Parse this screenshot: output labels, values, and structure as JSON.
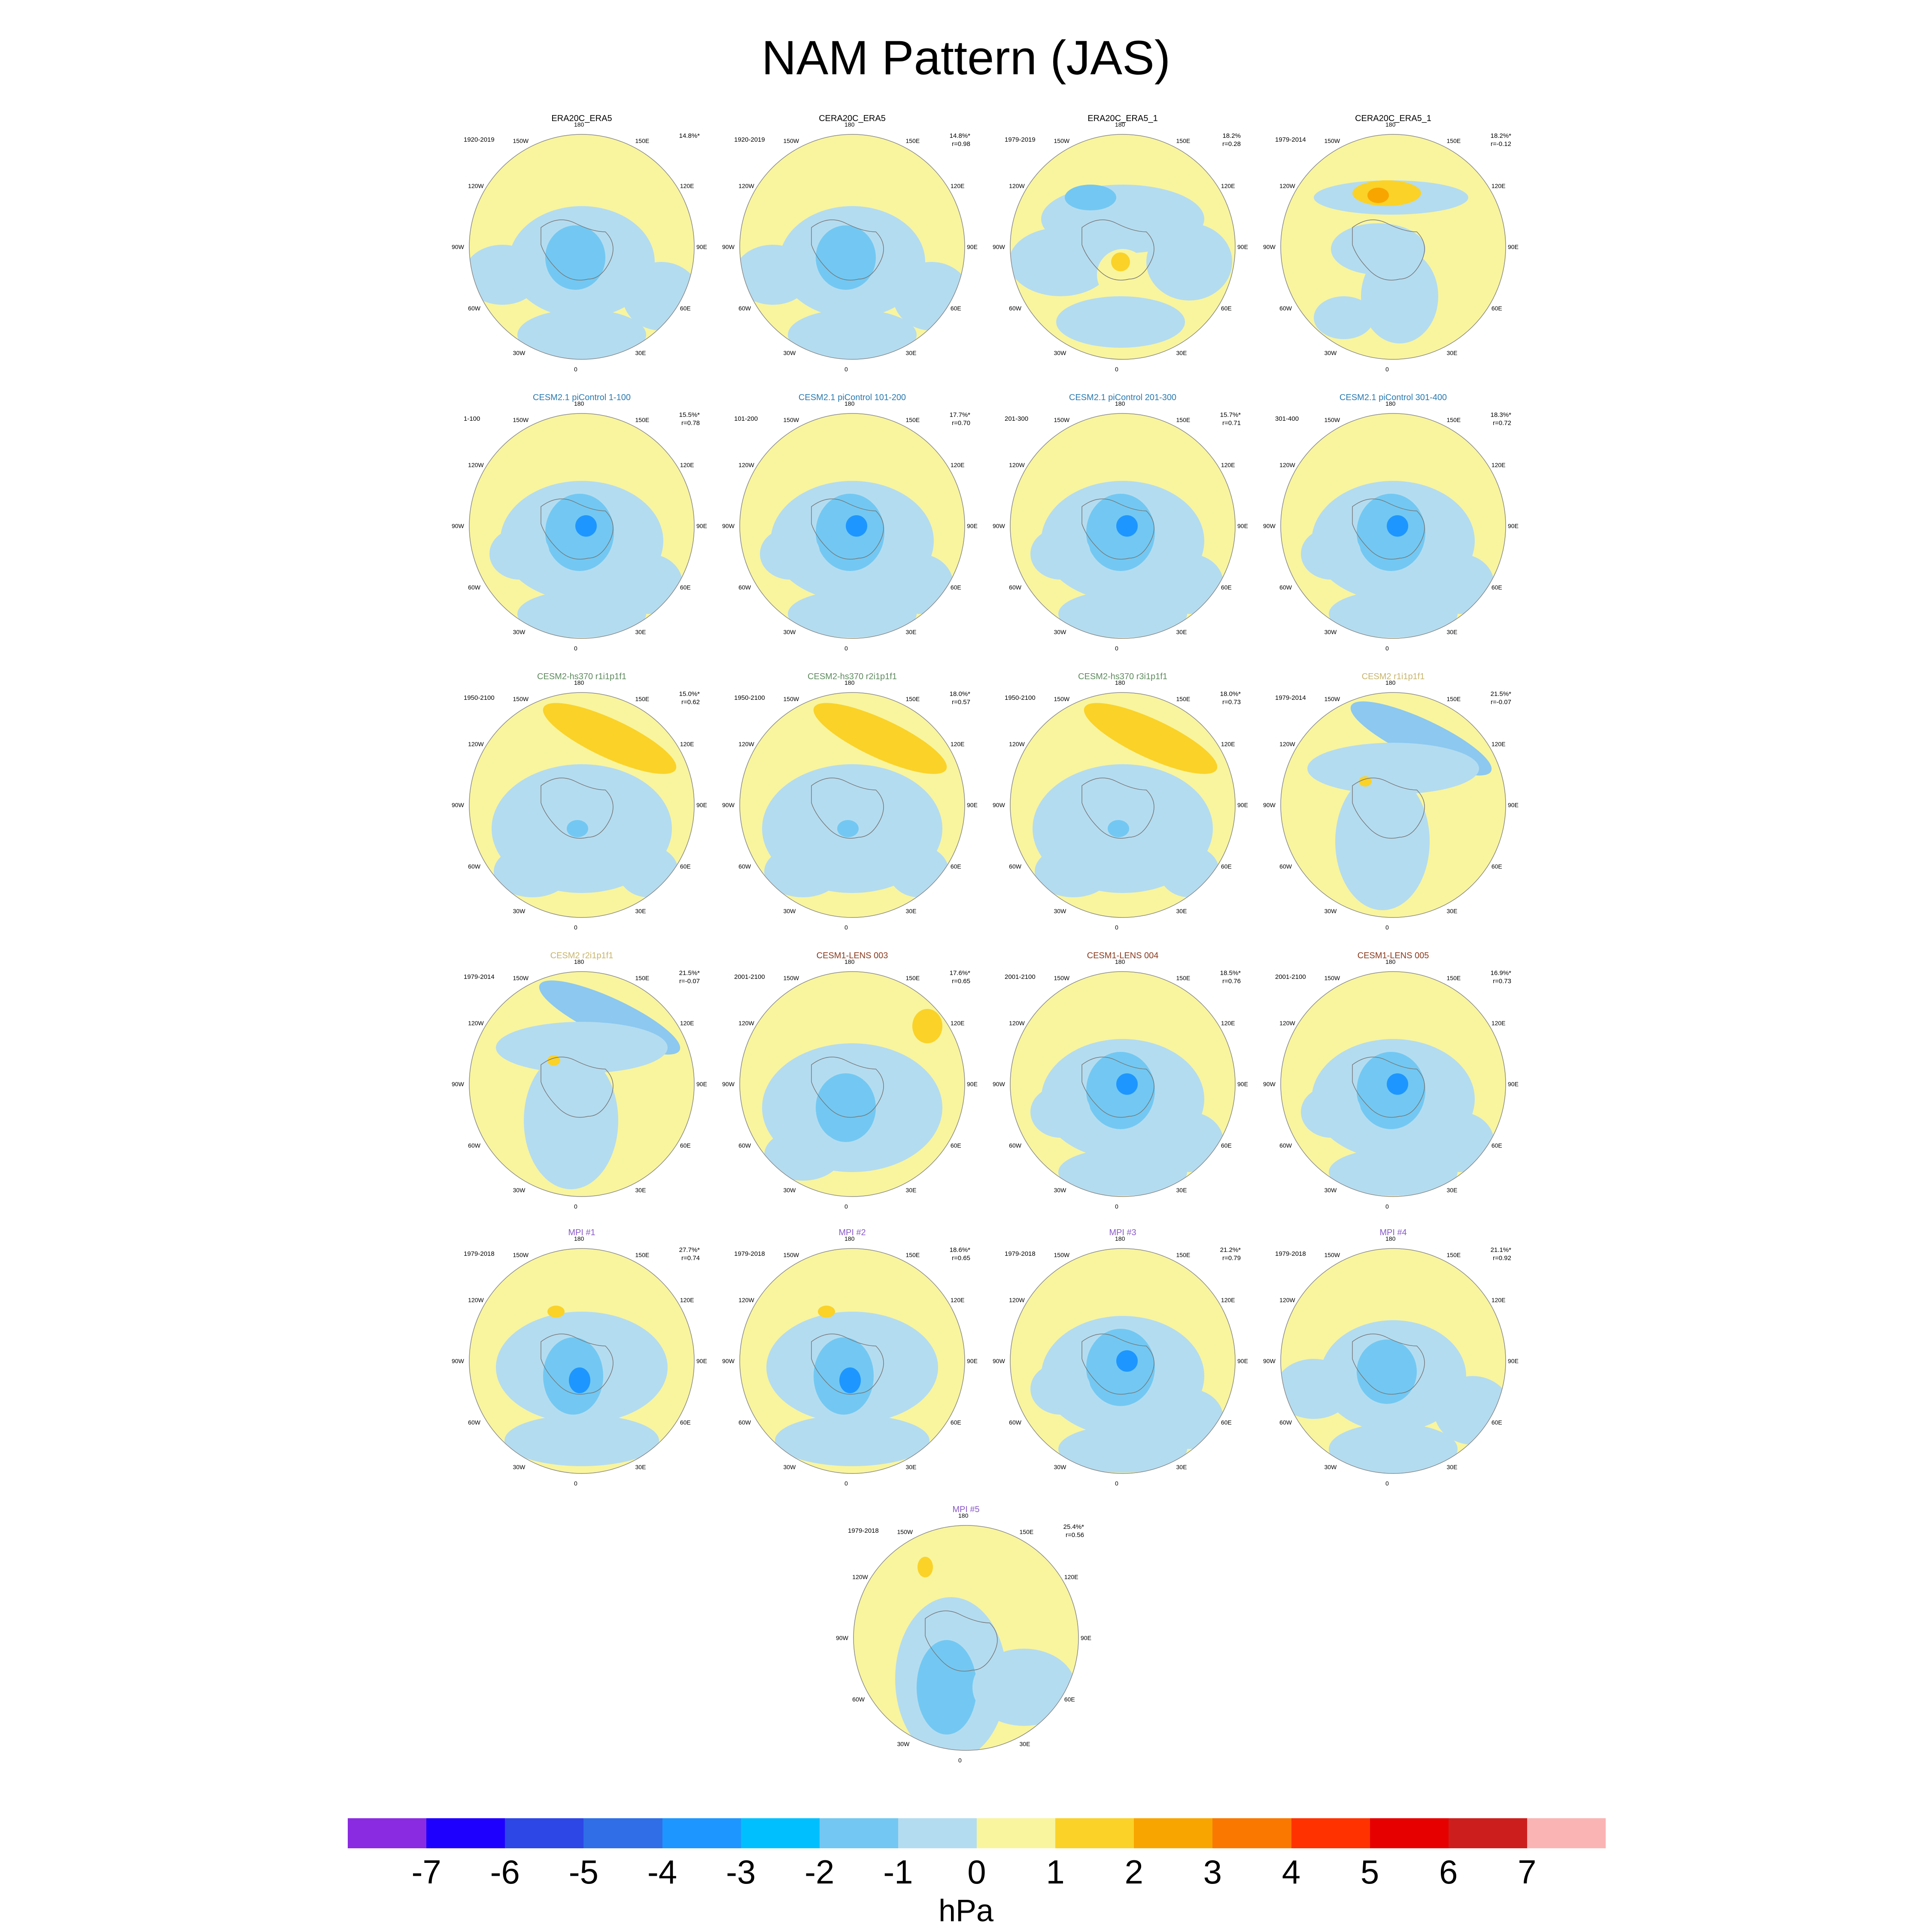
{
  "title": "NAM Pattern (JAS)",
  "lon_labels": [
    "180",
    "150E",
    "120E",
    "90E",
    "60E",
    "30E",
    "0",
    "30W",
    "60W",
    "90W",
    "120W",
    "150W"
  ],
  "panels": [
    {
      "title": "ERA20C_ERA5",
      "title_color": "#000000",
      "period": "1920-2019",
      "pct": "14.8%*",
      "r": "",
      "scheme": 0
    },
    {
      "title": "CERA20C_ERA5",
      "title_color": "#000000",
      "period": "1920-2019",
      "pct": "14.8%*",
      "r": "r=0.98",
      "scheme": 0
    },
    {
      "title": "ERA20C_ERA5_1",
      "title_color": "#000000",
      "period": "1979-2019",
      "pct": "18.2%",
      "r": "r=0.28",
      "scheme": 1
    },
    {
      "title": "CERA20C_ERA5_1",
      "title_color": "#000000",
      "period": "1979-2014",
      "pct": "18.2%*",
      "r": "r=-0.12",
      "scheme": 2
    },
    {
      "title": "CESM2.1 piControl 1-100",
      "title_color": "#2a7ab0",
      "period": "1-100",
      "pct": "15.5%*",
      "r": "r=0.78",
      "scheme": 3
    },
    {
      "title": "CESM2.1 piControl 101-200",
      "title_color": "#2a7ab0",
      "period": "101-200",
      "pct": "17.7%*",
      "r": "r=0.70",
      "scheme": 3
    },
    {
      "title": "CESM2.1 piControl 201-300",
      "title_color": "#2a7ab0",
      "period": "201-300",
      "pct": "15.7%*",
      "r": "r=0.71",
      "scheme": 3
    },
    {
      "title": "CESM2.1 piControl 301-400",
      "title_color": "#2a7ab0",
      "period": "301-400",
      "pct": "18.3%*",
      "r": "r=0.72",
      "scheme": 3
    },
    {
      "title": "CESM2-hs370 r1i1p1f1",
      "title_color": "#5e8a5e",
      "period": "1950-2100",
      "pct": "15.0%*",
      "r": "r=0.62",
      "scheme": 4
    },
    {
      "title": "CESM2-hs370 r2i1p1f1",
      "title_color": "#5e8a5e",
      "period": "1950-2100",
      "pct": "18.0%*",
      "r": "r=0.57",
      "scheme": 4
    },
    {
      "title": "CESM2-hs370 r3i1p1f1",
      "title_color": "#5e8a5e",
      "period": "1950-2100",
      "pct": "18.0%*",
      "r": "r=0.73",
      "scheme": 4
    },
    {
      "title": "CESM2 r1i1p1f1",
      "title_color": "#c8b46a",
      "period": "1979-2014",
      "pct": "21.5%*",
      "r": "r=-0.07",
      "scheme": 5
    },
    {
      "title": "CESM2 r2i1p1f1",
      "title_color": "#c8b46a",
      "period": "1979-2014",
      "pct": "21.5%*",
      "r": "r=-0.07",
      "scheme": 5
    },
    {
      "title": "CESM1-LENS 003",
      "title_color": "#8a3a1e",
      "period": "2001-2100",
      "pct": "17.6%*",
      "r": "r=0.65",
      "scheme": 6
    },
    {
      "title": "CESM1-LENS 004",
      "title_color": "#8a3a1e",
      "period": "2001-2100",
      "pct": "18.5%*",
      "r": "r=0.76",
      "scheme": 3
    },
    {
      "title": "CESM1-LENS 005",
      "title_color": "#8a3a1e",
      "period": "2001-2100",
      "pct": "16.9%*",
      "r": "r=0.73",
      "scheme": 3
    },
    {
      "title": "MPI #1",
      "title_color": "#8a5ac8",
      "period": "1979-2018",
      "pct": "27.7%*",
      "r": "r=0.74",
      "scheme": 7
    },
    {
      "title": "MPI #2",
      "title_color": "#8a5ac8",
      "period": "1979-2018",
      "pct": "18.6%*",
      "r": "r=0.65",
      "scheme": 7
    },
    {
      "title": "MPI #3",
      "title_color": "#8a5ac8",
      "period": "1979-2018",
      "pct": "21.2%*",
      "r": "r=0.79",
      "scheme": 3
    },
    {
      "title": "MPI #4",
      "title_color": "#8a5ac8",
      "period": "1979-2018",
      "pct": "21.1%*",
      "r": "r=0.92",
      "scheme": 0
    },
    {
      "title": "MPI #5",
      "title_color": "#8a5ac8",
      "period": "1979-2018",
      "pct": "25.4%*",
      "r": "r=0.56",
      "scheme": 8
    }
  ],
  "colorbar": {
    "colors": [
      "#8a2be2",
      "#1e00ff",
      "#2d46e6",
      "#2f6ee6",
      "#1e96ff",
      "#00bfff",
      "#72c8f2",
      "#b4dcf0",
      "#f9f59e",
      "#fad228",
      "#f9a500",
      "#fa7800",
      "#ff3200",
      "#e60000",
      "#cd1e1e",
      "#fbb4b4"
    ],
    "ticks": [
      "-7",
      "-6",
      "-5",
      "-4",
      "-3",
      "-2",
      "-1",
      "0",
      "1",
      "2",
      "3",
      "4",
      "5",
      "6",
      "7"
    ],
    "units": "hPa"
  }
}
